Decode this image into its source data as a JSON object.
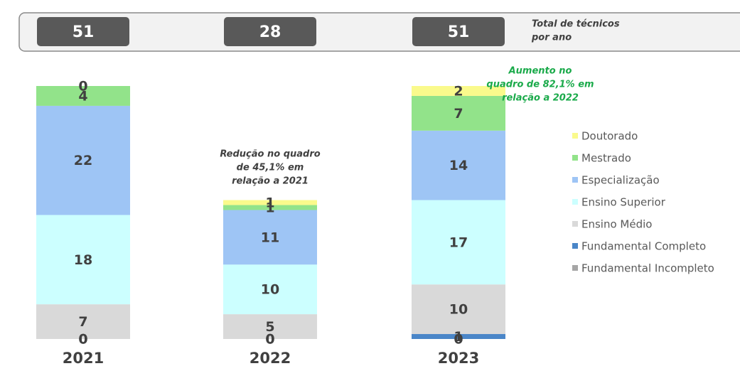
{
  "chart_data": {
    "type": "stacked_bar",
    "categories": [
      "2021",
      "2022",
      "2023"
    ],
    "totals": [
      51,
      28,
      51
    ],
    "total_label": [
      "Total de técnicos",
      "por ano"
    ],
    "series": [
      {
        "name": "Fundamental Incompleto",
        "color": "#a6a6a6",
        "values": [
          0,
          0,
          0
        ]
      },
      {
        "name": "Fundamental Completo",
        "color": "#4a86c8",
        "values": [
          0,
          0,
          1
        ]
      },
      {
        "name": "Ensino Médio",
        "color": "#d9d9d9",
        "values": [
          7,
          5,
          10
        ]
      },
      {
        "name": "Ensino Superior",
        "color": "#ccffff",
        "values": [
          18,
          10,
          17
        ]
      },
      {
        "name": "Especialização",
        "color": "#9ec5f5",
        "values": [
          22,
          11,
          14
        ]
      },
      {
        "name": "Mestrado",
        "color": "#92e38a",
        "values": [
          4,
          1,
          7
        ]
      },
      {
        "name": "Doutorado",
        "color": "#fafa8c",
        "values": [
          0,
          1,
          2
        ]
      }
    ],
    "ylim": [
      0,
      51
    ],
    "annotations": [
      {
        "category": 1,
        "color": "#404040",
        "lines": [
          "Redução no quadro",
          "de 45,1% em",
          "relação a 2021"
        ]
      },
      {
        "category": 2,
        "color": "#1aaa4a",
        "lines": [
          "Aumento no",
          "quadro de 82,1% em",
          "relação a 2022"
        ]
      }
    ]
  }
}
